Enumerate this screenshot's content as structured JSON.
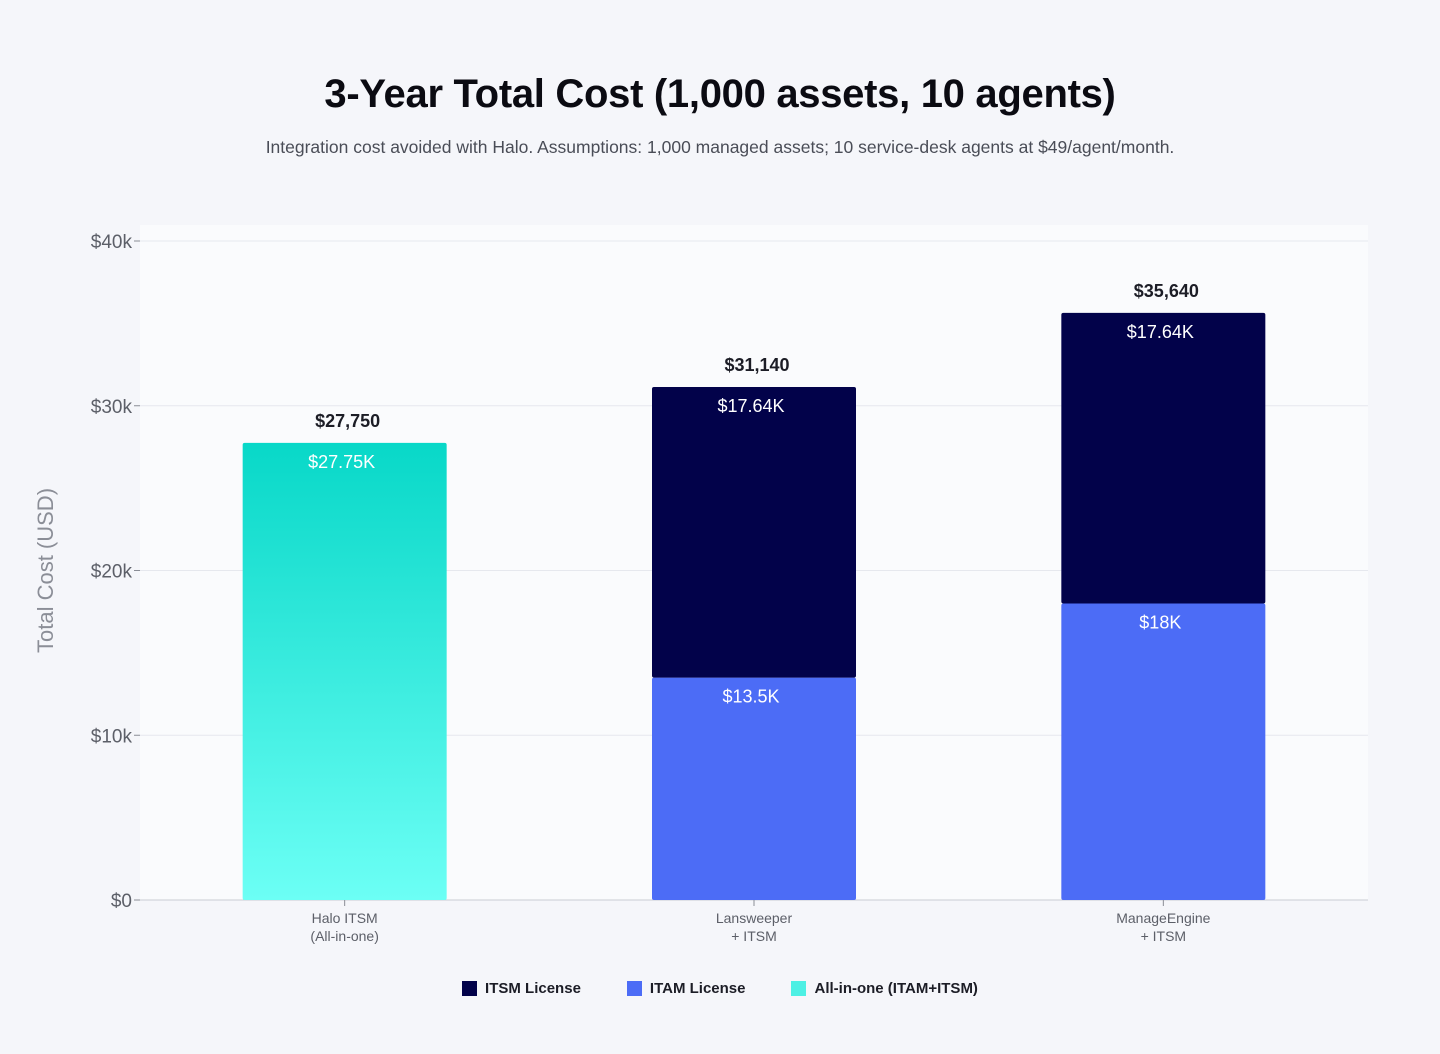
{
  "header": {
    "title": "3-Year Total Cost (1,000 assets, 10 agents)",
    "subtitle": "Integration cost avoided with Halo. Assumptions: 1,000 managed assets; 10 service-desk agents at $49/agent/month."
  },
  "chart_data": {
    "type": "bar",
    "stacked": true,
    "ylabel": "Total Cost (USD)",
    "ylim": [
      0,
      40000
    ],
    "yticks": [
      {
        "value": 0,
        "label": "$0"
      },
      {
        "value": 10000,
        "label": "$10k"
      },
      {
        "value": 20000,
        "label": "$20k"
      },
      {
        "value": 30000,
        "label": "$30k"
      },
      {
        "value": 40000,
        "label": "$40k"
      }
    ],
    "grid": true,
    "legend_position": "bottom-center",
    "categories": [
      [
        "Halo ITSM",
        "(All-in-one)"
      ],
      [
        "Lansweeper",
        "+ ITSM"
      ],
      [
        "ManageEngine",
        "+ ITSM"
      ]
    ],
    "totals": [
      27750,
      31140,
      35640
    ],
    "total_labels": [
      "$27,750",
      "$31,140",
      "$35,640"
    ],
    "series": [
      {
        "name": "ITSM License",
        "color": "#02024a",
        "values": [
          0,
          17640,
          17640
        ],
        "labels": [
          "",
          "$17.64K",
          "$17.64K"
        ]
      },
      {
        "name": "ITAM License",
        "color": "#4c6cf6",
        "values": [
          0,
          13500,
          18000
        ],
        "labels": [
          "",
          "$13.5K",
          "$18K"
        ]
      },
      {
        "name": "All-in-one (ITAM+ITSM)",
        "color": "#4df0e4",
        "gradient": [
          "#6cfff5",
          "#08d8c8"
        ],
        "values": [
          27750,
          0,
          0
        ],
        "labels": [
          "$27.75K",
          "",
          ""
        ]
      }
    ]
  }
}
